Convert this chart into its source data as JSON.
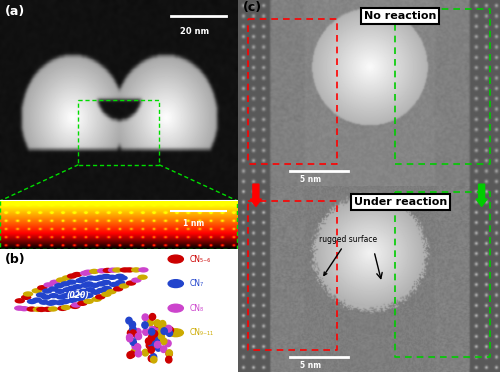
{
  "panel_a_label": "(a)",
  "panel_b_label": "(b)",
  "panel_c_label": "(c)",
  "scalebar_a1": "20 nm",
  "scalebar_a2": "1 nm",
  "scalebar_c1": "5 nm",
  "scalebar_c2": "5 nm",
  "no_reaction_text": "No reaction",
  "under_reaction_text": "Under reaction",
  "rugged_surface_text": "rugged surface",
  "label_020": "(020)",
  "legend_labels": [
    "CN₅₋₆",
    "CN₇",
    "CN₈",
    "CN₉₋₁₁"
  ],
  "legend_colors": [
    "#cc0000",
    "#2244cc",
    "#cc44cc",
    "#ccaa00"
  ],
  "figsize": [
    5.0,
    3.72
  ],
  "dpi": 100
}
